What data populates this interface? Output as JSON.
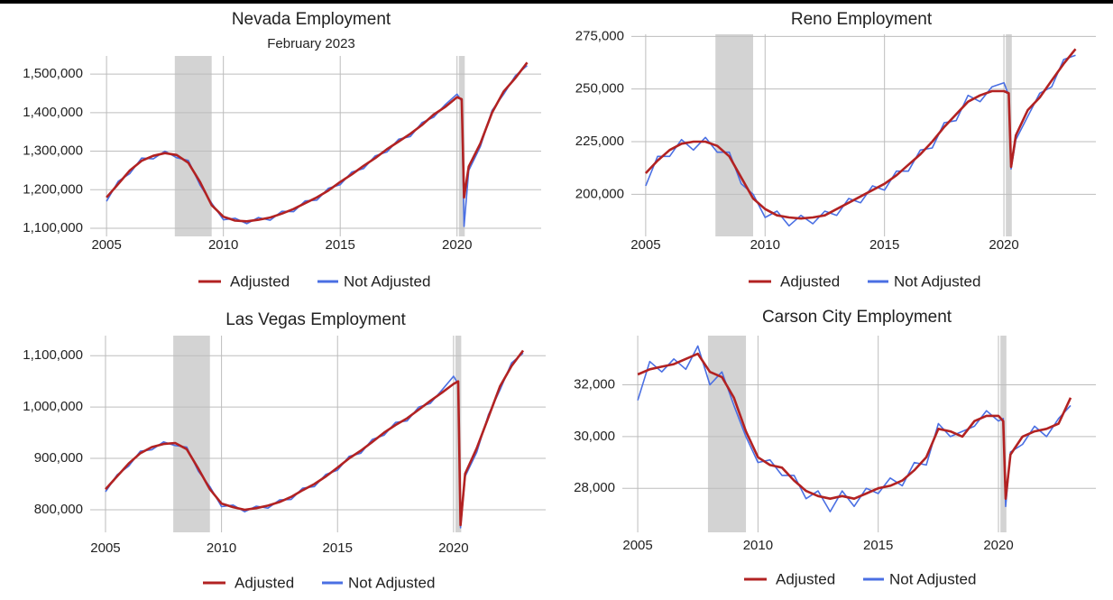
{
  "chart_data": [
    {
      "type": "line",
      "title": "Nevada Employment",
      "subtitle": "February 2023",
      "x": [
        2005,
        2005.5,
        2006,
        2006.5,
        2007,
        2007.5,
        2008,
        2008.5,
        2009,
        2009.5,
        2010,
        2010.5,
        2011,
        2011.5,
        2012,
        2012.5,
        2013,
        2013.5,
        2014,
        2014.5,
        2015,
        2015.5,
        2016,
        2016.5,
        2017,
        2017.5,
        2018,
        2018.5,
        2019,
        2019.5,
        2020,
        2020.2,
        2020.3,
        2020.5,
        2021,
        2021.5,
        2022,
        2022.5,
        2023
      ],
      "series": [
        {
          "name": "Adjusted",
          "color": "#b22222",
          "values": [
            1180000,
            1215000,
            1250000,
            1275000,
            1288000,
            1295000,
            1290000,
            1270000,
            1220000,
            1160000,
            1130000,
            1120000,
            1118000,
            1122000,
            1128000,
            1138000,
            1150000,
            1165000,
            1180000,
            1198000,
            1220000,
            1240000,
            1262000,
            1282000,
            1305000,
            1325000,
            1345000,
            1368000,
            1395000,
            1415000,
            1440000,
            1435000,
            1180000,
            1260000,
            1320000,
            1400000,
            1455000,
            1490000,
            1530000
          ]
        },
        {
          "name": "Not Adjusted",
          "color": "#4a6fe3",
          "values": [
            1170000,
            1222000,
            1242000,
            1282000,
            1280000,
            1300000,
            1283000,
            1276000,
            1212000,
            1165000,
            1122000,
            1126000,
            1112000,
            1128000,
            1121000,
            1144000,
            1143000,
            1171000,
            1173000,
            1204000,
            1213000,
            1246000,
            1255000,
            1288000,
            1298000,
            1331000,
            1338000,
            1374000,
            1388000,
            1421000,
            1448000,
            1430000,
            1105000,
            1250000,
            1312000,
            1406000,
            1448000,
            1496000,
            1522000
          ]
        }
      ],
      "recessions": [
        [
          2007.92,
          2009.5
        ],
        [
          2020.08,
          2020.33
        ]
      ],
      "xlim": [
        2004.3,
        2023.6
      ],
      "xticks": [
        2005,
        2010,
        2015,
        2020
      ],
      "ylim": [
        1079000,
        1547000
      ],
      "yticks": [
        {
          "value": 1100000,
          "label": "1,100,000"
        },
        {
          "value": 1200000,
          "label": "1,200,000"
        },
        {
          "value": 1300000,
          "label": "1,300,000"
        },
        {
          "value": 1400000,
          "label": "1,400,000"
        },
        {
          "value": 1500000,
          "label": "1,500,000"
        }
      ],
      "grid": true,
      "legend": "bottom"
    },
    {
      "type": "line",
      "title": "Reno Employment",
      "x": [
        2005,
        2005.5,
        2006,
        2006.5,
        2007,
        2007.5,
        2008,
        2008.5,
        2009,
        2009.5,
        2010,
        2010.5,
        2011,
        2011.5,
        2012,
        2012.5,
        2013,
        2013.5,
        2014,
        2014.5,
        2015,
        2015.5,
        2016,
        2016.5,
        2017,
        2017.5,
        2018,
        2018.5,
        2019,
        2019.5,
        2020,
        2020.2,
        2020.3,
        2020.5,
        2021,
        2021.5,
        2022,
        2022.5,
        2023
      ],
      "series": [
        {
          "name": "Adjusted",
          "color": "#b22222",
          "values": [
            210000,
            216000,
            221000,
            224000,
            225000,
            225000,
            223000,
            218000,
            208000,
            198000,
            193000,
            190000,
            189000,
            188500,
            189000,
            190000,
            193000,
            196000,
            199000,
            202000,
            205000,
            209000,
            214000,
            219000,
            225000,
            232000,
            238000,
            244000,
            247000,
            249000,
            249000,
            248000,
            213000,
            228000,
            240000,
            246000,
            254000,
            262000,
            269000
          ]
        },
        {
          "name": "Not Adjusted",
          "color": "#4a6fe3",
          "values": [
            204000,
            218000,
            218000,
            226000,
            221000,
            227000,
            220000,
            220000,
            205000,
            200000,
            189000,
            192000,
            185000,
            190000,
            186000,
            192000,
            190000,
            198000,
            196000,
            204000,
            202000,
            211000,
            211000,
            221000,
            222000,
            234000,
            235000,
            247000,
            244000,
            251000,
            253000,
            247000,
            212000,
            226000,
            237000,
            248000,
            251000,
            264000,
            266000
          ]
        }
      ],
      "recessions": [
        [
          2007.92,
          2009.5
        ],
        [
          2020.08,
          2020.33
        ]
      ],
      "xlim": [
        2004.4,
        2023.85
      ],
      "xticks": [
        2005,
        2010,
        2015,
        2020
      ],
      "ylim": [
        180000,
        276000
      ],
      "yticks": [
        {
          "value": 200000,
          "label": "200,000"
        },
        {
          "value": 225000,
          "label": "225,000"
        },
        {
          "value": 250000,
          "label": "250,000"
        },
        {
          "value": 275000,
          "label": "275,000"
        }
      ],
      "grid": true,
      "legend": "bottom"
    },
    {
      "type": "line",
      "title": "Las Vegas Employment",
      "x": [
        2005,
        2005.5,
        2006,
        2006.5,
        2007,
        2007.5,
        2008,
        2008.5,
        2009,
        2009.5,
        2010,
        2010.5,
        2011,
        2011.5,
        2012,
        2012.5,
        2013,
        2013.5,
        2014,
        2014.5,
        2015,
        2015.5,
        2016,
        2016.5,
        2017,
        2017.5,
        2018,
        2018.5,
        2019,
        2019.5,
        2020,
        2020.2,
        2020.3,
        2020.5,
        2021,
        2021.5,
        2022,
        2022.5,
        2023
      ],
      "series": [
        {
          "name": "Adjusted",
          "color": "#b22222",
          "values": [
            840000,
            865000,
            890000,
            910000,
            922000,
            928000,
            930000,
            918000,
            880000,
            840000,
            812000,
            805000,
            800000,
            803000,
            808000,
            815000,
            825000,
            838000,
            850000,
            865000,
            882000,
            900000,
            915000,
            932000,
            950000,
            965000,
            978000,
            995000,
            1012000,
            1028000,
            1045000,
            1050000,
            770000,
            870000,
            920000,
            980000,
            1040000,
            1080000,
            1110000
          ]
        },
        {
          "name": "Not Adjusted",
          "color": "#4a6fe3",
          "values": [
            835000,
            868000,
            885000,
            914000,
            917000,
            932000,
            925000,
            922000,
            875000,
            845000,
            806000,
            809000,
            796000,
            807000,
            803000,
            819000,
            820000,
            842000,
            845000,
            869000,
            877000,
            904000,
            910000,
            937000,
            945000,
            970000,
            973000,
            1000000,
            1007000,
            1033000,
            1060000,
            1045000,
            765000,
            865000,
            912000,
            985000,
            1033000,
            1086000,
            1105000
          ]
        }
      ],
      "recessions": [
        [
          2007.92,
          2009.5
        ],
        [
          2020.08,
          2020.33
        ]
      ],
      "xlim": [
        2004.34,
        2023.97
      ],
      "xticks": [
        2005,
        2010,
        2015,
        2020
      ],
      "ylim": [
        756000,
        1139000
      ],
      "yticks": [
        {
          "value": 800000,
          "label": "800,000"
        },
        {
          "value": 900000,
          "label": "900,000"
        },
        {
          "value": 1000000,
          "label": "1,000,000"
        },
        {
          "value": 1100000,
          "label": "1,100,000"
        }
      ],
      "grid": true,
      "legend": "bottom"
    },
    {
      "type": "line",
      "title": "Carson City Employment",
      "x": [
        2005,
        2005.5,
        2006,
        2006.5,
        2007,
        2007.5,
        2008,
        2008.5,
        2009,
        2009.5,
        2010,
        2010.5,
        2011,
        2011.5,
        2012,
        2012.5,
        2013,
        2013.5,
        2014,
        2014.5,
        2015,
        2015.5,
        2016,
        2016.5,
        2017,
        2017.5,
        2018,
        2018.5,
        2019,
        2019.5,
        2020,
        2020.2,
        2020.3,
        2020.5,
        2021,
        2021.5,
        2022,
        2022.5,
        2023
      ],
      "series": [
        {
          "name": "Adjusted",
          "color": "#b22222",
          "values": [
            32400,
            32600,
            32700,
            32800,
            33000,
            33200,
            32500,
            32300,
            31500,
            30200,
            29200,
            28900,
            28800,
            28300,
            27900,
            27700,
            27600,
            27700,
            27600,
            27800,
            28000,
            28100,
            28300,
            28700,
            29200,
            30300,
            30200,
            30000,
            30600,
            30800,
            30800,
            30600,
            27600,
            29300,
            30000,
            30200,
            30300,
            30500,
            31500
          ]
        },
        {
          "name": "Not Adjusted",
          "color": "#4a6fe3",
          "values": [
            31400,
            32900,
            32500,
            33000,
            32600,
            33500,
            32000,
            32500,
            31200,
            30000,
            29000,
            29100,
            28500,
            28500,
            27600,
            27900,
            27100,
            27900,
            27300,
            28000,
            27800,
            28400,
            28100,
            29000,
            28900,
            30500,
            30000,
            30200,
            30400,
            31000,
            30600,
            30700,
            27300,
            29400,
            29700,
            30400,
            30000,
            30700,
            31200
          ]
        }
      ],
      "recessions": [
        [
          2007.92,
          2009.5
        ],
        [
          2020.08,
          2020.33
        ]
      ],
      "xlim": [
        2004.36,
        2024.05
      ],
      "xticks": [
        2005,
        2010,
        2015,
        2020
      ],
      "ylim": [
        26300,
        33900
      ],
      "yticks": [
        {
          "value": 28000,
          "label": "28,000"
        },
        {
          "value": 30000,
          "label": "30,000"
        },
        {
          "value": 32000,
          "label": "32,000"
        }
      ],
      "grid": true,
      "legend": "bottom"
    }
  ]
}
